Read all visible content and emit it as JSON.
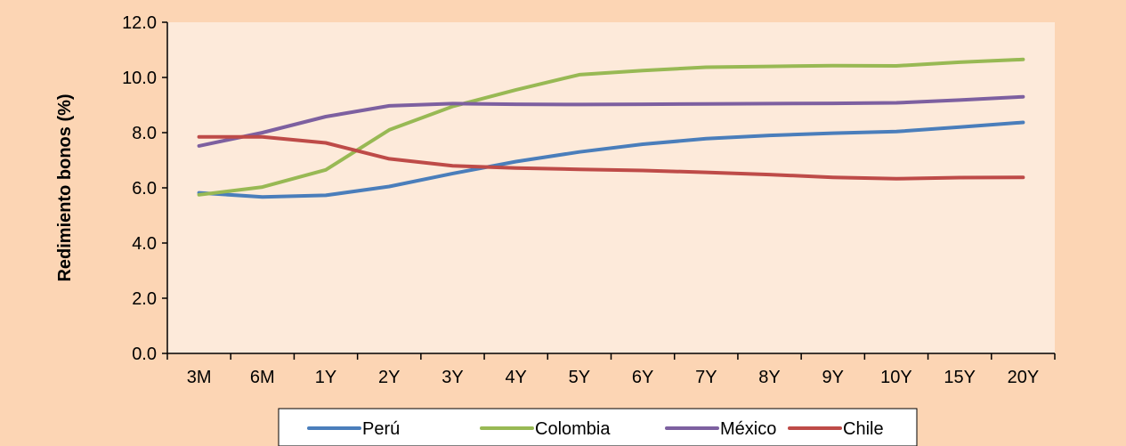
{
  "chart_data": {
    "type": "line",
    "title": "",
    "xlabel": "",
    "ylabel": "Redimiento bonos (%)",
    "categories": [
      "3M",
      "6M",
      "1Y",
      "2Y",
      "3Y",
      "4Y",
      "5Y",
      "6Y",
      "7Y",
      "8Y",
      "9Y",
      "10Y",
      "15Y",
      "20Y"
    ],
    "ylim": [
      0,
      12
    ],
    "yticks": [
      "0.0",
      "2.0",
      "4.0",
      "6.0",
      "8.0",
      "10.0",
      "12.0"
    ],
    "grid": false,
    "legend_position": "bottom",
    "series": [
      {
        "name": "Perú",
        "color": "#4a7ebb",
        "values": [
          5.82,
          5.67,
          5.73,
          6.05,
          6.52,
          6.95,
          7.3,
          7.58,
          7.78,
          7.9,
          7.98,
          8.04,
          8.2,
          8.37
        ]
      },
      {
        "name": "Colombia",
        "color": "#98b954",
        "values": [
          5.75,
          6.03,
          6.65,
          8.1,
          8.95,
          9.55,
          10.1,
          10.25,
          10.37,
          10.4,
          10.43,
          10.42,
          10.55,
          10.65
        ]
      },
      {
        "name": "México",
        "color": "#7d60a0",
        "values": [
          7.52,
          8.0,
          8.58,
          8.97,
          9.05,
          9.03,
          9.02,
          9.03,
          9.04,
          9.05,
          9.06,
          9.08,
          9.18,
          9.3
        ]
      },
      {
        "name": "Chile",
        "color": "#be4b48",
        "values": [
          7.85,
          7.85,
          7.63,
          7.05,
          6.8,
          6.72,
          6.67,
          6.63,
          6.56,
          6.48,
          6.38,
          6.33,
          6.37,
          6.38
        ]
      }
    ]
  }
}
